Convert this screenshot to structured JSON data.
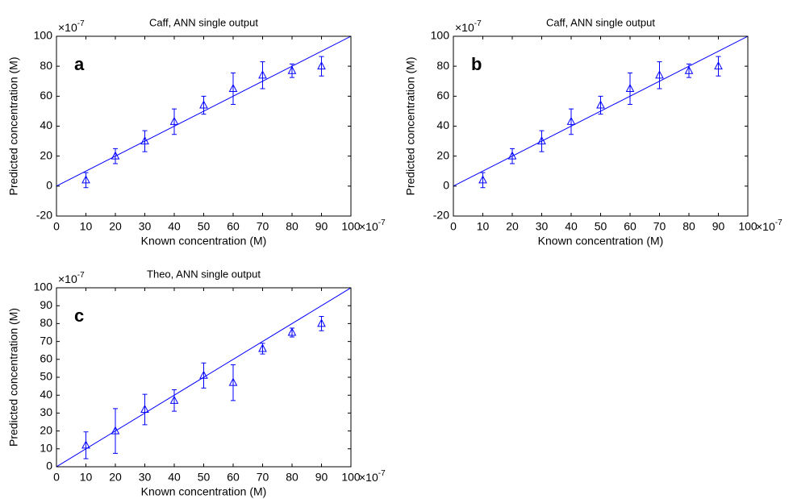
{
  "chart_data": [
    {
      "type": "scatter",
      "title": "Caff, ANN single output",
      "panel_label": "a",
      "x_label": "Known concentration (M)",
      "y_label": "Predicted concentration (M)",
      "x_scale_base": "×10",
      "x_scale_exponent": "-7",
      "y_scale_base": "×10",
      "y_scale_exponent": "-7",
      "xlim": [
        0,
        100
      ],
      "ylim": [
        -20,
        100
      ],
      "xticks": [
        0,
        10,
        20,
        30,
        40,
        50,
        60,
        70,
        80,
        90,
        100
      ],
      "yticks": [
        -20,
        0,
        20,
        40,
        60,
        80,
        100
      ],
      "reference_line": {
        "color": "#0000ff",
        "x": [
          0,
          100
        ],
        "y": [
          0,
          100
        ]
      },
      "series": [
        {
          "color": "#0000ff",
          "x": [
            10,
            20,
            30,
            40,
            50,
            60,
            70,
            80,
            90
          ],
          "values": [
            4,
            20,
            30,
            43,
            54,
            65,
            74,
            77,
            80
          ],
          "errors": [
            5,
            5,
            7,
            8.5,
            6,
            10.5,
            9,
            4.5,
            6.5
          ]
        }
      ]
    },
    {
      "type": "scatter",
      "title": "Caff, ANN single output",
      "panel_label": "b",
      "x_label": "Known concentration (M)",
      "y_label": "Predicted concentration (M)",
      "x_scale_base": "×10",
      "x_scale_exponent": "-7",
      "y_scale_base": "×10",
      "y_scale_exponent": "-7",
      "xlim": [
        0,
        100
      ],
      "ylim": [
        -20,
        100
      ],
      "xticks": [
        0,
        10,
        20,
        30,
        40,
        50,
        60,
        70,
        80,
        90,
        100
      ],
      "yticks": [
        -20,
        0,
        20,
        40,
        60,
        80,
        100
      ],
      "reference_line": {
        "color": "#0000ff",
        "x": [
          0,
          100
        ],
        "y": [
          0,
          100
        ]
      },
      "series": [
        {
          "color": "#0000ff",
          "x": [
            10,
            20,
            30,
            40,
            50,
            60,
            70,
            80,
            90
          ],
          "values": [
            4,
            20,
            30,
            43,
            54,
            65,
            74,
            77,
            80
          ],
          "errors": [
            5,
            5,
            7,
            8.5,
            6,
            10.5,
            9,
            4.5,
            6.5
          ]
        }
      ]
    },
    {
      "type": "scatter",
      "title": "Theo, ANN single output",
      "panel_label": "c",
      "x_label": "Known concentration (M)",
      "y_label": "Predicted concentration (M)",
      "x_scale_base": "×10",
      "x_scale_exponent": "-7",
      "y_scale_base": "×10",
      "y_scale_exponent": "-7",
      "xlim": [
        0,
        100
      ],
      "ylim": [
        0,
        100
      ],
      "xticks": [
        0,
        10,
        20,
        30,
        40,
        50,
        60,
        70,
        80,
        90,
        100
      ],
      "yticks": [
        0,
        10,
        20,
        30,
        40,
        50,
        60,
        70,
        80,
        90,
        100
      ],
      "reference_line": {
        "color": "#0000ff",
        "x": [
          0,
          100
        ],
        "y": [
          0,
          100
        ]
      },
      "series": [
        {
          "color": "#0000ff",
          "x": [
            10,
            20,
            30,
            40,
            50,
            60,
            70,
            80,
            90
          ],
          "values": [
            12,
            20,
            32,
            37,
            51,
            47,
            66,
            75,
            80
          ],
          "errors": [
            7.5,
            12.5,
            8.5,
            6,
            7,
            10,
            3,
            2.5,
            4
          ]
        }
      ]
    }
  ]
}
